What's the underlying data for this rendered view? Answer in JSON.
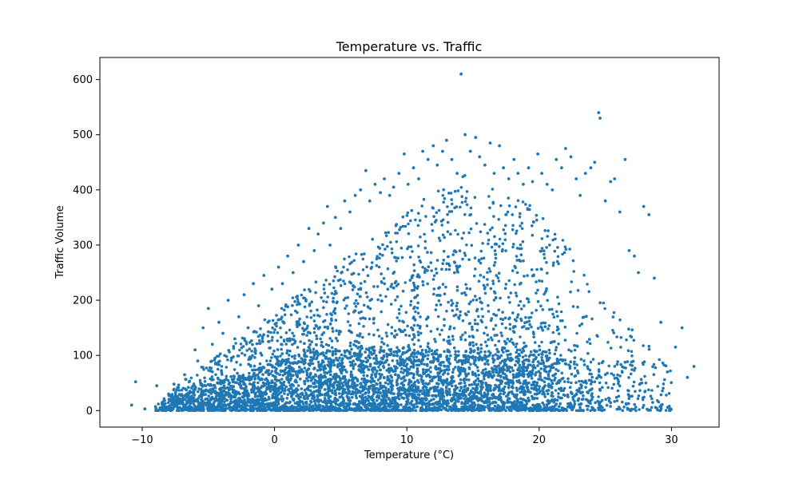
{
  "chart_data": {
    "type": "scatter",
    "title": "Temperature vs. Traffic",
    "xlabel": "Temperature (°C)",
    "ylabel": "Traffic Volume",
    "xlim": [
      -13.2,
      33.6
    ],
    "ylim": [
      -30,
      640
    ],
    "xticks": [
      -10,
      0,
      10,
      20,
      30
    ],
    "yticks": [
      0,
      100,
      200,
      300,
      400,
      500,
      600
    ],
    "grid": false,
    "legend": "none",
    "marker_color": "#1f77b4",
    "series": [
      {
        "x": [
          -10.8,
          -10.5,
          -9.8,
          -8.9,
          -8.5,
          -8.0,
          -7.6,
          -7.2,
          -6.8,
          -6.4,
          -6.0,
          -5.8,
          -5.4,
          -5.0,
          -4.7,
          -4.5,
          -4.2,
          -3.9,
          -3.5,
          -3.0,
          -2.7,
          -2.3,
          -2.0,
          -1.6,
          -1.2,
          -0.8,
          -0.5,
          -0.2,
          0.3,
          0.6,
          1.0,
          1.4,
          1.8,
          2.2,
          2.6,
          3.0,
          3.3,
          3.7,
          4.0,
          4.2,
          4.6,
          5.0,
          5.3,
          5.7,
          6.1,
          6.5,
          6.9,
          7.2,
          7.6,
          8.0,
          8.3,
          8.7,
          9.0,
          9.4,
          9.8,
          10.1,
          10.5,
          10.9,
          11.2,
          11.6,
          12.0,
          12.3,
          12.7,
          13.0,
          13.4,
          13.8,
          14.1,
          14.4,
          14.8,
          15.2,
          15.5,
          15.9,
          16.3,
          16.6,
          17.0,
          17.3,
          17.7,
          18.1,
          18.4,
          18.8,
          19.2,
          19.5,
          19.9,
          20.2,
          20.6,
          21.0,
          21.3,
          21.7,
          22.0,
          22.4,
          22.8,
          23.1,
          23.5,
          23.9,
          24.2,
          24.5,
          24.6,
          25.0,
          25.4,
          25.7,
          26.1,
          26.5,
          26.8,
          27.2,
          27.5,
          27.9,
          28.3,
          28.7,
          29.2,
          29.7,
          30.3,
          30.8,
          31.2,
          31.7
        ],
        "y": [
          10,
          52,
          3,
          45,
          12,
          30,
          48,
          20,
          65,
          35,
          110,
          90,
          150,
          185,
          120,
          95,
          160,
          140,
          200,
          130,
          170,
          210,
          150,
          230,
          190,
          245,
          160,
          220,
          260,
          230,
          280,
          250,
          300,
          270,
          330,
          290,
          320,
          340,
          370,
          300,
          350,
          330,
          380,
          360,
          390,
          400,
          435,
          380,
          410,
          395,
          420,
          390,
          405,
          430,
          465,
          410,
          440,
          420,
          470,
          455,
          480,
          445,
          470,
          490,
          455,
          430,
          610,
          500,
          470,
          495,
          460,
          445,
          485,
          430,
          480,
          440,
          420,
          455,
          430,
          410,
          440,
          415,
          465,
          430,
          410,
          400,
          455,
          440,
          475,
          460,
          420,
          390,
          430,
          440,
          450,
          540,
          530,
          380,
          415,
          420,
          360,
          455,
          290,
          280,
          250,
          370,
          355,
          240,
          160,
          70,
          115,
          150,
          60,
          80
        ]
      }
    ]
  }
}
